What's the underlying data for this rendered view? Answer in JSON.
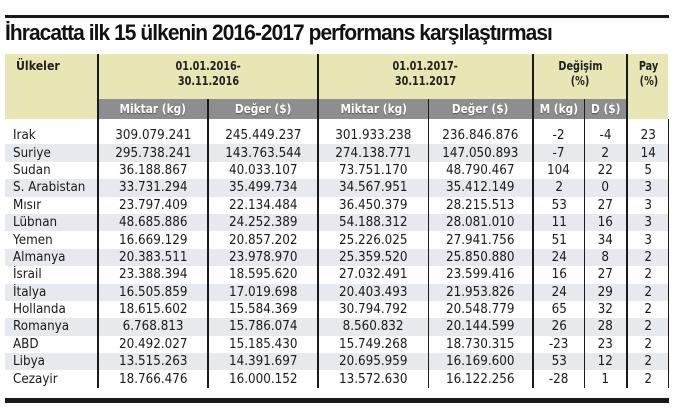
{
  "title": "İhracatta ilk 15 ülkenin 2016-2017 performans karşılaştırması",
  "table": {
    "header": {
      "country": "Ülkeler",
      "period1": "01.01.2016-\n30.11.2016",
      "period1_line1": "01.01.2016-",
      "period1_line2": "30.11.2016",
      "period2_line1": "01.01.2017-",
      "period2_line2": "30.11.2017",
      "change_line1": "Değişim",
      "change_line2": "(%)",
      "share_line1": "Pay",
      "share_line2": "(%)"
    },
    "subheader": {
      "p1_quantity": "Miktar (kg)",
      "p1_value": "Değer ($)",
      "p2_quantity": "Miktar (kg)",
      "p2_value": "Değer ($)",
      "change_quantity": "M (kg)",
      "change_value": "D ($)"
    },
    "rows": [
      {
        "country": "Irak",
        "q2016": "309.079.241",
        "v2016": "245.449.237",
        "q2017": "301.933.238",
        "v2017": "236.846.876",
        "dm": "-2",
        "dd": "-4",
        "pay": "23"
      },
      {
        "country": "Suriye",
        "q2016": "295.738.241",
        "v2016": "143.763.544",
        "q2017": "274.138.771",
        "v2017": "147.050.893",
        "dm": "-7",
        "dd": "2",
        "pay": "14"
      },
      {
        "country": "Sudan",
        "q2016": "36.188.867",
        "v2016": "40.033.107",
        "q2017": "73.751.170",
        "v2017": "48.790.467",
        "dm": "104",
        "dd": "22",
        "pay": "5"
      },
      {
        "country": "S. Arabistan",
        "q2016": "33.731.294",
        "v2016": "35.499.734",
        "q2017": "34.567.951",
        "v2017": "35.412.149",
        "dm": "2",
        "dd": "0",
        "pay": "3"
      },
      {
        "country": "Mısır",
        "q2016": "23.797.409",
        "v2016": "22.134.484",
        "q2017": "36.450.379",
        "v2017": "28.215.513",
        "dm": "53",
        "dd": "27",
        "pay": "3"
      },
      {
        "country": "Lübnan",
        "q2016": "48.685.886",
        "v2016": "24.252.389",
        "q2017": "54.188.312",
        "v2017": "28.081.010",
        "dm": "11",
        "dd": "16",
        "pay": "3"
      },
      {
        "country": "Yemen",
        "q2016": "16.669.129",
        "v2016": "20.857.202",
        "q2017": "25.226.025",
        "v2017": "27.941.756",
        "dm": "51",
        "dd": "34",
        "pay": "3"
      },
      {
        "country": "Almanya",
        "q2016": "20.383.511",
        "v2016": "23.978.970",
        "q2017": "25.359.520",
        "v2017": "25.850.880",
        "dm": "24",
        "dd": "8",
        "pay": "2"
      },
      {
        "country": "İsrail",
        "q2016": "23.388.394",
        "v2016": "18.595.620",
        "q2017": "27.032.491",
        "v2017": "23.599.416",
        "dm": "16",
        "dd": "27",
        "pay": "2"
      },
      {
        "country": "İtalya",
        "q2016": "16.505.859",
        "v2016": "17.019.698",
        "q2017": "20.403.493",
        "v2017": "21.953.826",
        "dm": "24",
        "dd": "29",
        "pay": "2"
      },
      {
        "country": "Hollanda",
        "q2016": "18.615.602",
        "v2016": "15.584.369",
        "q2017": "30.794.792",
        "v2017": "20.548.779",
        "dm": "65",
        "dd": "32",
        "pay": "2"
      },
      {
        "country": "Romanya",
        "q2016": "6.768.813",
        "v2016": "15.786.074",
        "q2017": "8.560.832",
        "v2017": "20.144.599",
        "dm": "26",
        "dd": "28",
        "pay": "2"
      },
      {
        "country": "ABD",
        "q2016": "20.492.027",
        "v2016": "15.185.430",
        "q2017": "15.749.268",
        "v2017": "18.730.315",
        "dm": "-23",
        "dd": "23",
        "pay": "2"
      },
      {
        "country": "Libya",
        "q2016": "13.515.263",
        "v2016": "14.391.697",
        "q2017": "20.695.959",
        "v2017": "16.169.600",
        "dm": "53",
        "dd": "12",
        "pay": "2"
      },
      {
        "country": "Cezayir",
        "q2016": "18.766.476",
        "v2016": "16.000.152",
        "q2017": "13.572.630",
        "v2017": "16.122.256",
        "dm": "-28",
        "dd": "1",
        "pay": "2"
      }
    ]
  },
  "colors": {
    "header_beige": "#e8e6b5",
    "subheader_gray": "#8e8e90",
    "row_alt": "#e6e9ed",
    "rule": "#1a1a1a"
  }
}
